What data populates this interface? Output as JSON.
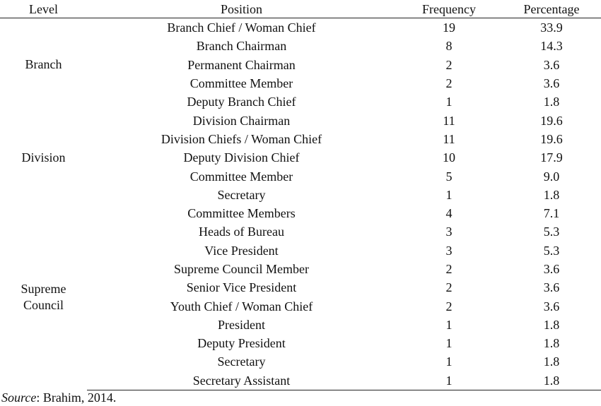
{
  "table": {
    "headers": {
      "level": "Level",
      "position": "Position",
      "frequency": "Frequency",
      "percentage": "Percentage"
    },
    "groups": {
      "branch": {
        "level_lines": [
          "Branch"
        ]
      },
      "division": {
        "level_lines": [
          "Division"
        ]
      },
      "supreme": {
        "level_lines": [
          "Supreme",
          "Council"
        ]
      }
    },
    "rows": [
      {
        "position": "Branch Chief / Woman Chief",
        "frequency": "19",
        "percentage": "33.9"
      },
      {
        "position": "Branch Chairman",
        "frequency": "8",
        "percentage": "14.3"
      },
      {
        "position": "Permanent Chairman",
        "frequency": "2",
        "percentage": "3.6"
      },
      {
        "position": "Committee Member",
        "frequency": "2",
        "percentage": "3.6"
      },
      {
        "position": "Deputy Branch Chief",
        "frequency": "1",
        "percentage": "1.8"
      },
      {
        "position": "Division Chairman",
        "frequency": "11",
        "percentage": "19.6"
      },
      {
        "position": "Division Chiefs / Woman Chief",
        "frequency": "11",
        "percentage": "19.6"
      },
      {
        "position": "Deputy Division Chief",
        "frequency": "10",
        "percentage": "17.9"
      },
      {
        "position": "Committee Member",
        "frequency": "5",
        "percentage": "9.0"
      },
      {
        "position": "Secretary",
        "frequency": "1",
        "percentage": "1.8"
      },
      {
        "position": "Committee Members",
        "frequency": "4",
        "percentage": "7.1"
      },
      {
        "position": "Heads of Bureau",
        "frequency": "3",
        "percentage": "5.3"
      },
      {
        "position": "Vice President",
        "frequency": "3",
        "percentage": "5.3"
      },
      {
        "position": "Supreme Council Member",
        "frequency": "2",
        "percentage": "3.6"
      },
      {
        "position": "Senior Vice President",
        "frequency": "2",
        "percentage": "3.6"
      },
      {
        "position": "Youth Chief / Woman Chief",
        "frequency": "2",
        "percentage": "3.6"
      },
      {
        "position": "President",
        "frequency": "1",
        "percentage": "1.8"
      },
      {
        "position": "Deputy President",
        "frequency": "1",
        "percentage": "1.8"
      },
      {
        "position": "Secretary",
        "frequency": "1",
        "percentage": "1.8"
      },
      {
        "position": "Secretary Assistant",
        "frequency": "1",
        "percentage": "1.8"
      }
    ]
  },
  "source": {
    "label": "Source",
    "text": ": Brahim, 2014."
  }
}
